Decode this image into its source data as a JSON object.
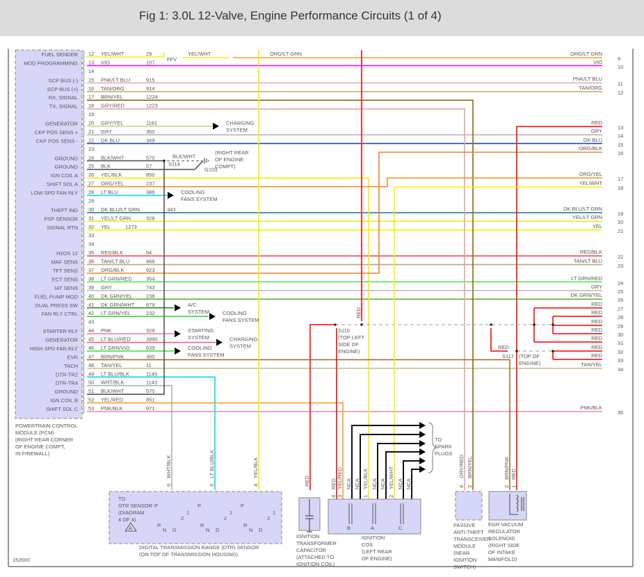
{
  "header": {
    "title": "Fig 1: 3.0L 12-Valve, Engine Performance Circuits (1 of 4)"
  },
  "pcm": {
    "label_lines": [
      "POWERTRAIN CONTROL",
      "MODULE (PCM)",
      "(RIGHT REAR CORNER",
      "OF ENGINE COMPT,",
      "IN FIREWALL)"
    ],
    "pins": [
      {
        "pin": "12",
        "label": "FUEL SENDER",
        "wire": "YEL/WHT",
        "circuit": "29",
        "hex": "#f5f000"
      },
      {
        "pin": "13",
        "label": "MOD PROGRAMMING",
        "wire": "VIO",
        "circuit": "107",
        "hex": "#ff00ff"
      },
      {
        "pin": "14",
        "label": "",
        "wire": "",
        "circuit": "",
        "hex": ""
      },
      {
        "pin": "15",
        "label": "SCP BUS (-)",
        "wire": "PNK/LT BLU",
        "circuit": "915",
        "hex": "#f0a8c8"
      },
      {
        "pin": "16",
        "label": "SCP BUS (+)",
        "wire": "TAN/ORG",
        "circuit": "914",
        "hex": "#d0a060"
      },
      {
        "pin": "17",
        "label": "RX, SIGNAL",
        "wire": "BRN/YEL",
        "circuit": "1224",
        "hex": "#8b6a10"
      },
      {
        "pin": "18",
        "label": "TX, SIGNAL",
        "wire": "GRY/RED",
        "circuit": "1223",
        "hex": "#f0a0a0"
      },
      {
        "pin": "19",
        "label": "",
        "wire": "",
        "circuit": "",
        "hex": ""
      },
      {
        "pin": "20",
        "label": "GENERATOR",
        "wire": "GRY/YEL",
        "circuit": "1181",
        "hex": "#d0d080"
      },
      {
        "pin": "21",
        "label": "CKP POS SENS +",
        "wire": "GRY",
        "circuit": "350",
        "hex": "#b8b8b8"
      },
      {
        "pin": "22",
        "label": "CKP POS SENS -",
        "wire": "DK BLU",
        "circuit": "349",
        "hex": "#2840a0"
      },
      {
        "pin": "23",
        "label": "",
        "wire": "",
        "circuit": "",
        "hex": ""
      },
      {
        "pin": "24",
        "label": "GROUND",
        "wire": "BLK/WHT",
        "circuit": "570",
        "hex": "#555555"
      },
      {
        "pin": "25",
        "label": "GROUND",
        "wire": "BLK",
        "circuit": "57",
        "hex": "#555555"
      },
      {
        "pin": "26",
        "label": "IGN COIL A",
        "wire": "YEL/BLK",
        "circuit": "850",
        "hex": "#f0f000"
      },
      {
        "pin": "27",
        "label": "SHIFT SOL A",
        "wire": "ORG/YEL",
        "circuit": "237",
        "hex": "#f09020"
      },
      {
        "pin": "28",
        "label": "LOW SPD FAN RLY",
        "wire": "LT BLU",
        "circuit": "386",
        "hex": "#00e0f0"
      },
      {
        "pin": "29",
        "label": "",
        "wire": "",
        "circuit": "",
        "hex": ""
      },
      {
        "pin": "30",
        "label": "THEFT IND",
        "wire": "DK BLU/LT GRN",
        "circuit": "343",
        "hex": "#2a8080"
      },
      {
        "pin": "31",
        "label": "PSP SENSOR",
        "wire": "YEL/LT GRN",
        "circuit": "328",
        "hex": "#e0f020"
      },
      {
        "pin": "32",
        "label": "SIGNAL RTN",
        "wire": "YEL",
        "circuit": "1273",
        "hex": "#f5f500"
      },
      {
        "pin": "33",
        "label": "",
        "wire": "",
        "circuit": "",
        "hex": ""
      },
      {
        "pin": "34",
        "label": "",
        "wire": "",
        "circuit": "",
        "hex": ""
      },
      {
        "pin": "35",
        "label": "H2OS 12",
        "wire": "RED/BLK",
        "circuit": "94",
        "hex": "#f04040"
      },
      {
        "pin": "36",
        "label": "MAF SENS",
        "wire": "TAN/LT BLU",
        "circuit": "968",
        "hex": "#c0a878"
      },
      {
        "pin": "37",
        "label": "TFT SENS",
        "wire": "ORG/BLK",
        "circuit": "923",
        "hex": "#f08030"
      },
      {
        "pin": "38",
        "label": "ECT SENS",
        "wire": "LT GRN/RED",
        "circuit": "354",
        "hex": "#50e850"
      },
      {
        "pin": "39",
        "label": "IAT SENS",
        "wire": "GRY",
        "circuit": "743",
        "hex": "#b8b8b8"
      },
      {
        "pin": "40",
        "label": "FUEL PUMP MOD",
        "wire": "DK GRN/YEL",
        "circuit": "238",
        "hex": "#60b030"
      },
      {
        "pin": "41",
        "label": "DUAL PRESS SW",
        "wire": "DK GRN/WHT",
        "circuit": "879",
        "hex": "#208020"
      },
      {
        "pin": "42",
        "label": "FAN RLY CTRL",
        "wire": "LT GRN/YEL",
        "circuit": "232",
        "hex": "#30e030"
      },
      {
        "pin": "43",
        "label": "",
        "wire": "",
        "circuit": "",
        "hex": ""
      },
      {
        "pin": "44",
        "label": "STARTER RLY",
        "wire": "PNK",
        "circuit": "329",
        "hex": "#f080a0"
      },
      {
        "pin": "45",
        "label": "GENERATOR",
        "wire": "LT BLU/RED",
        "circuit": "3990",
        "hex": "#f06080"
      },
      {
        "pin": "46",
        "label": "HIGH SPD FAN RLY",
        "wire": "LT GRN/VIO",
        "circuit": "639",
        "hex": "#40e040"
      },
      {
        "pin": "47",
        "label": "EVR",
        "wire": "BRN/PNK",
        "circuit": "360",
        "hex": "#a07030"
      },
      {
        "pin": "48",
        "label": "TACH",
        "wire": "TAN/YEL",
        "circuit": "11",
        "hex": "#d0c080"
      },
      {
        "pin": "49",
        "label": "DTR-TR2",
        "wire": "LT BLU/BLK",
        "circuit": "1145",
        "hex": "#00d8e8"
      },
      {
        "pin": "50",
        "label": "DTR-TR4",
        "wire": "WHT/BLK",
        "circuit": "1143",
        "hex": "#b0b0b0"
      },
      {
        "pin": "51",
        "label": "GROUND",
        "wire": "BLK/WHT",
        "circuit": "570",
        "hex": "#555555"
      },
      {
        "pin": "52",
        "label": "IGN COIL B",
        "wire": "YEL/RED",
        "circuit": "851",
        "hex": "#f8a020"
      },
      {
        "pin": "53",
        "label": "SHIFT SOL C",
        "wire": "PNK/BLK",
        "circuit": "971",
        "hex": "#f090b0"
      }
    ]
  },
  "destinations": {
    "20": [
      "CHARGING",
      "SYSTEM"
    ],
    "28": [
      "COOLING",
      "FANS SYSTEM"
    ],
    "41": [
      "A/C",
      "SYSTEM"
    ],
    "42": [
      "COOLING",
      "FANS SYSTEM"
    ],
    "44": [
      "STARTING",
      "SYSTEM"
    ],
    "45": [
      "CHARGING",
      "SYSTEM"
    ],
    "46": [
      "COOLING",
      "FANS SYSTEM"
    ]
  },
  "right_connector": [
    {
      "num": "9",
      "wire": "ORG/LT GRN",
      "hex": "#f0a030"
    },
    {
      "num": "10",
      "wire": "VIO",
      "hex": "#ff00ff"
    },
    {
      "num": "11",
      "wire": "PNK/LT BLU",
      "hex": "#f0a8c8"
    },
    {
      "num": "12",
      "wire": "TAN/ORG",
      "hex": "#d0a060"
    },
    {
      "num": "13",
      "wire": "RED",
      "hex": "#ff2020"
    },
    {
      "num": "14",
      "wire": "GRY",
      "hex": "#b8b8b8"
    },
    {
      "num": "15",
      "wire": "DK BLU",
      "hex": "#2840a0"
    },
    {
      "num": "16",
      "wire": "ORG/BLK",
      "hex": "#f08030"
    },
    {
      "num": "17",
      "wire": "ORG/YEL",
      "hex": "#f09020"
    },
    {
      "num": "18",
      "wire": "YEL/WHT",
      "hex": "#f5f000"
    },
    {
      "num": "19",
      "wire": "DK BLU/LT GRN",
      "hex": "#2a8080"
    },
    {
      "num": "20",
      "wire": "YEL/LT GRN",
      "hex": "#e0f020"
    },
    {
      "num": "21",
      "wire": "YEL",
      "hex": "#f5f500"
    },
    {
      "num": "22",
      "wire": "RED/BLK",
      "hex": "#f04040"
    },
    {
      "num": "23",
      "wire": "TAN/LT BLU",
      "hex": "#c0a878"
    },
    {
      "num": "24",
      "wire": "LT GRN/RED",
      "hex": "#50e850"
    },
    {
      "num": "25",
      "wire": "GRY",
      "hex": "#b8b8b8"
    },
    {
      "num": "26",
      "wire": "DK GRN/YEL",
      "hex": "#60b030"
    },
    {
      "num": "27",
      "wire": "RED",
      "hex": "#ff2020"
    },
    {
      "num": "28",
      "wire": "RED",
      "hex": "#ff2020"
    },
    {
      "num": "29",
      "wire": "RED",
      "hex": "#ff2020"
    },
    {
      "num": "30",
      "wire": "RED",
      "hex": "#ff2020"
    },
    {
      "num": "31",
      "wire": "RED",
      "hex": "#ff2020"
    },
    {
      "num": "32",
      "wire": "RED",
      "hex": "#ff2020"
    },
    {
      "num": "33",
      "wire": "RED",
      "hex": "#ff2020"
    },
    {
      "num": "34",
      "wire": "TAN/YEL",
      "hex": "#d0c080"
    },
    {
      "num": "35",
      "wire": "PNK/BLK",
      "hex": "#f090b0"
    }
  ],
  "splices": {
    "s114": "S114",
    "s114_wire": "BLK/WHT",
    "g103": "G103",
    "g103_loc": [
      "(RIGHT REAR",
      "OF ENGINE",
      "COMPT)"
    ],
    "s115": "S115",
    "s115_loc": [
      "(TOP LEFT",
      "SIDE OF",
      "ENGINE)"
    ],
    "s115_wire": "RED",
    "s117": "S117",
    "s117_loc": [
      "(TOP OF",
      "ENGINE)"
    ],
    "s117_wire": "RED"
  },
  "ffv": {
    "label": "FFV",
    "wire_in": "YEL/WHT",
    "wire_out": "ORG/LT GRN"
  },
  "components": {
    "dtr": {
      "title": [
        "DIGITAL TRANSMISSION RANGE (DTR) SENSOR",
        "(ON TOP OF TRANSMISSION HOUSING)"
      ],
      "ref": [
        "TO",
        "DTR SENSOR",
        "(DIAGRAM",
        "4 OF 4)"
      ],
      "ref_badge": "A",
      "pins": [
        {
          "num": "6",
          "wire": "WHT/BLK"
        },
        {
          "num": "5",
          "wire": "LT BLU/BLK"
        },
        {
          "num": "4",
          "wire": "YEL/BLK"
        }
      ],
      "positions": [
        "P",
        "R",
        "N",
        "D",
        "2",
        "1"
      ]
    },
    "capacitor": {
      "title": [
        "IGNITION",
        "TRANSFORMER",
        "CAPACITOR",
        "(ATTACHED TO",
        "IGNITION COIL)"
      ],
      "wire": "RED"
    },
    "coil": {
      "title": [
        "IGNITION",
        "COIL",
        "(LEFT REAR",
        "OF ENGINE)"
      ],
      "pins": [
        {
          "num": "4",
          "wire": "RED"
        },
        {
          "num": "3",
          "wire": "YEL/RED"
        },
        {
          "num": "",
          "wire": "NCA"
        },
        {
          "num": "",
          "wire": "NCA"
        },
        {
          "num": "1",
          "wire": "YEL/BLK"
        },
        {
          "num": "",
          "wire": "NCA"
        },
        {
          "num": "",
          "wire": "NCA"
        },
        {
          "num": "2",
          "wire": "YEL/WHT"
        },
        {
          "num": "",
          "wire": "NCA"
        },
        {
          "num": "",
          "wire": "NCA"
        }
      ],
      "coils": [
        "B",
        "A",
        "C"
      ],
      "spark": [
        "TO",
        "SPARK",
        "PLUGS"
      ]
    },
    "pats": {
      "title": [
        "PASSIVE",
        "ANTI-THEFT",
        "TRANSCEIVER",
        "MODULE",
        "(NEAR",
        "IGNITION",
        "SWITCH)"
      ],
      "pins": [
        {
          "num": "4",
          "wire": "GRY/RED"
        },
        {
          "num": "3",
          "wire": "BRN/YEL"
        }
      ]
    },
    "egr": {
      "title": [
        "EGR VACUUM",
        "REGULATOR",
        "SOLENOID",
        "(RIGHT SIDE",
        "OF INTAKE",
        "MANIFOLD)"
      ],
      "pins": [
        {
          "num": "2",
          "wire": "BRN/PNK"
        },
        {
          "num": "1",
          "wire": "RED"
        }
      ]
    }
  },
  "figure_id": "152600"
}
